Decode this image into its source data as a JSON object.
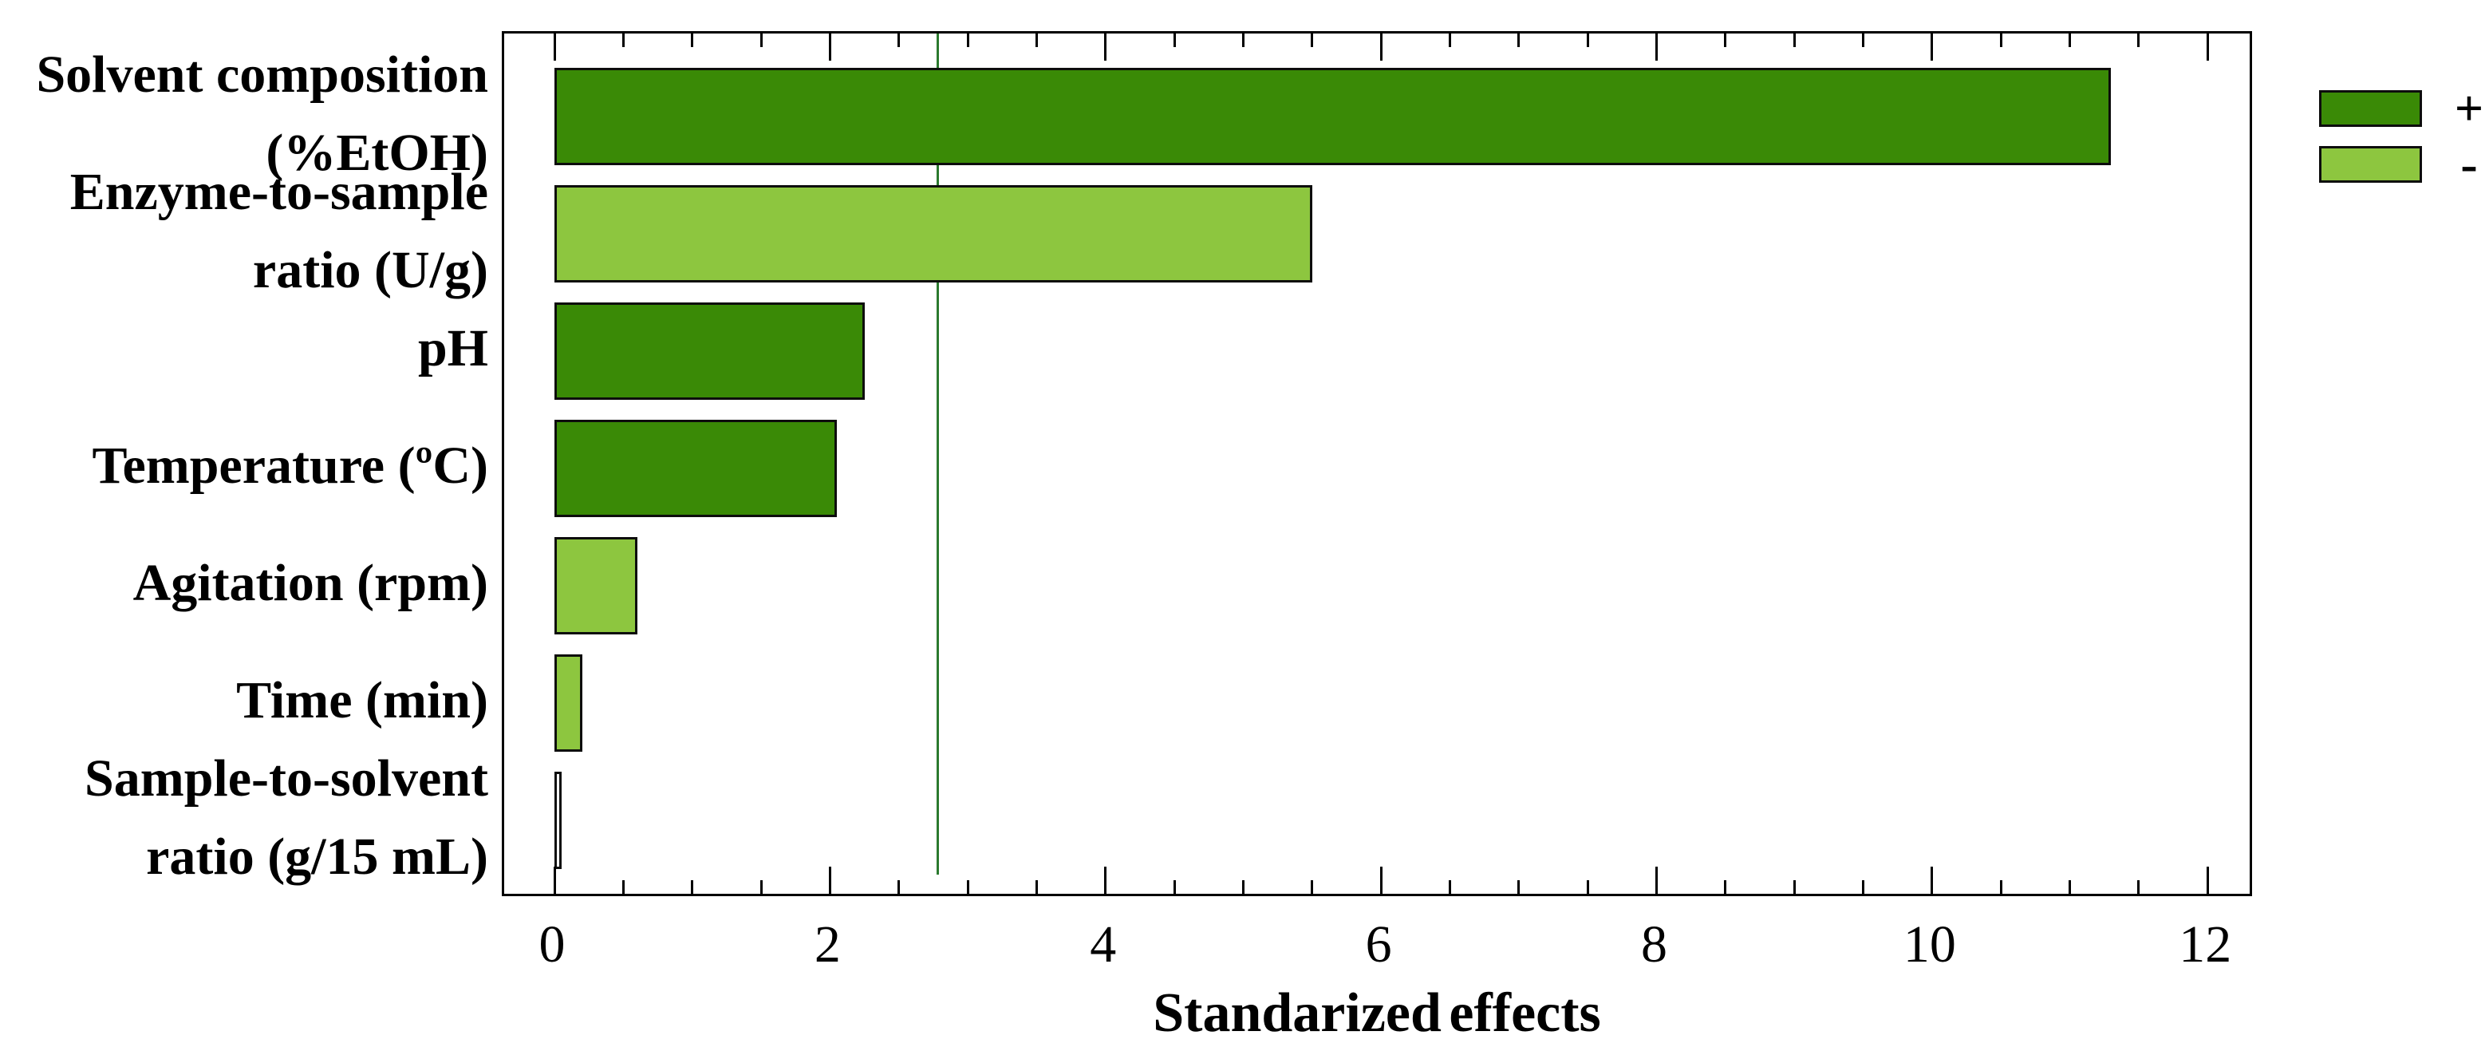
{
  "figure": {
    "background": "#ffffff"
  },
  "chart_data": {
    "type": "bar",
    "orientation": "horizontal",
    "title": "",
    "xlabel": "Standarized effects",
    "ylabel": "",
    "categories": [
      "Solvent composition\n(%EtOH)",
      "Enzyme-to-sample\nratio (U/g)",
      "pH",
      "Temperature (ºC)",
      "Agitation (rpm)",
      "Time (min)",
      "Sample-to-solvent\nratio (g/15 mL)"
    ],
    "values": [
      11.3,
      5.5,
      2.25,
      2.05,
      0.6,
      0.2,
      0.05
    ],
    "signs": [
      "+",
      "-",
      "+",
      "+",
      "-",
      "-",
      ""
    ],
    "xlim": [
      0,
      12.3
    ],
    "xticks": [
      0,
      2,
      4,
      6,
      8,
      10,
      12
    ],
    "minor_tick_interval": 0.5,
    "grid": false,
    "reference_line_value": 2.78,
    "legend": {
      "position": "top-right",
      "items": [
        {
          "label": "+",
          "color": "#3a8a06"
        },
        {
          "label": "-",
          "color": "#8dc63f"
        }
      ]
    },
    "colors": {
      "positive_bar": "#3a8a06",
      "negative_bar": "#8dc63f",
      "neutral_bar_fill": "#ffffff",
      "bar_border": "#0d0d0d",
      "reference_line": "#2b7a2f",
      "frame": "#000000",
      "text": "#000000"
    }
  }
}
